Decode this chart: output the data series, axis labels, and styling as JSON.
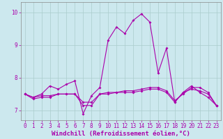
{
  "xlabel": "Windchill (Refroidissement éolien,°C)",
  "xlim": [
    -0.5,
    23.5
  ],
  "ylim": [
    6.7,
    10.3
  ],
  "yticks": [
    7,
    8,
    9,
    10
  ],
  "xticks": [
    0,
    1,
    2,
    3,
    4,
    5,
    6,
    7,
    8,
    9,
    10,
    11,
    12,
    13,
    14,
    15,
    16,
    17,
    18,
    19,
    20,
    21,
    22,
    23
  ],
  "background_color": "#cce8ee",
  "grid_color": "#aacccc",
  "line_color": "#aa00aa",
  "line1_y": [
    7.5,
    7.4,
    7.5,
    7.75,
    7.65,
    7.8,
    7.9,
    6.9,
    7.45,
    7.7,
    9.15,
    9.55,
    9.35,
    9.75,
    9.95,
    9.7,
    8.15,
    8.9,
    7.25,
    7.55,
    7.75,
    7.55,
    7.4,
    7.15
  ],
  "line2_y": [
    7.5,
    7.4,
    7.45,
    7.45,
    7.5,
    7.5,
    7.5,
    7.15,
    7.15,
    7.5,
    7.5,
    7.55,
    7.55,
    7.55,
    7.6,
    7.65,
    7.65,
    7.55,
    7.25,
    7.55,
    7.65,
    7.6,
    7.5,
    7.15
  ],
  "line3_y": [
    7.5,
    7.35,
    7.4,
    7.4,
    7.5,
    7.5,
    7.5,
    7.25,
    7.25,
    7.5,
    7.55,
    7.55,
    7.6,
    7.6,
    7.65,
    7.7,
    7.7,
    7.6,
    7.3,
    7.5,
    7.7,
    7.7,
    7.55,
    7.15
  ],
  "markersize": 2.0,
  "linewidth": 0.8,
  "tick_fontsize": 5.5,
  "xlabel_fontsize": 6.5
}
